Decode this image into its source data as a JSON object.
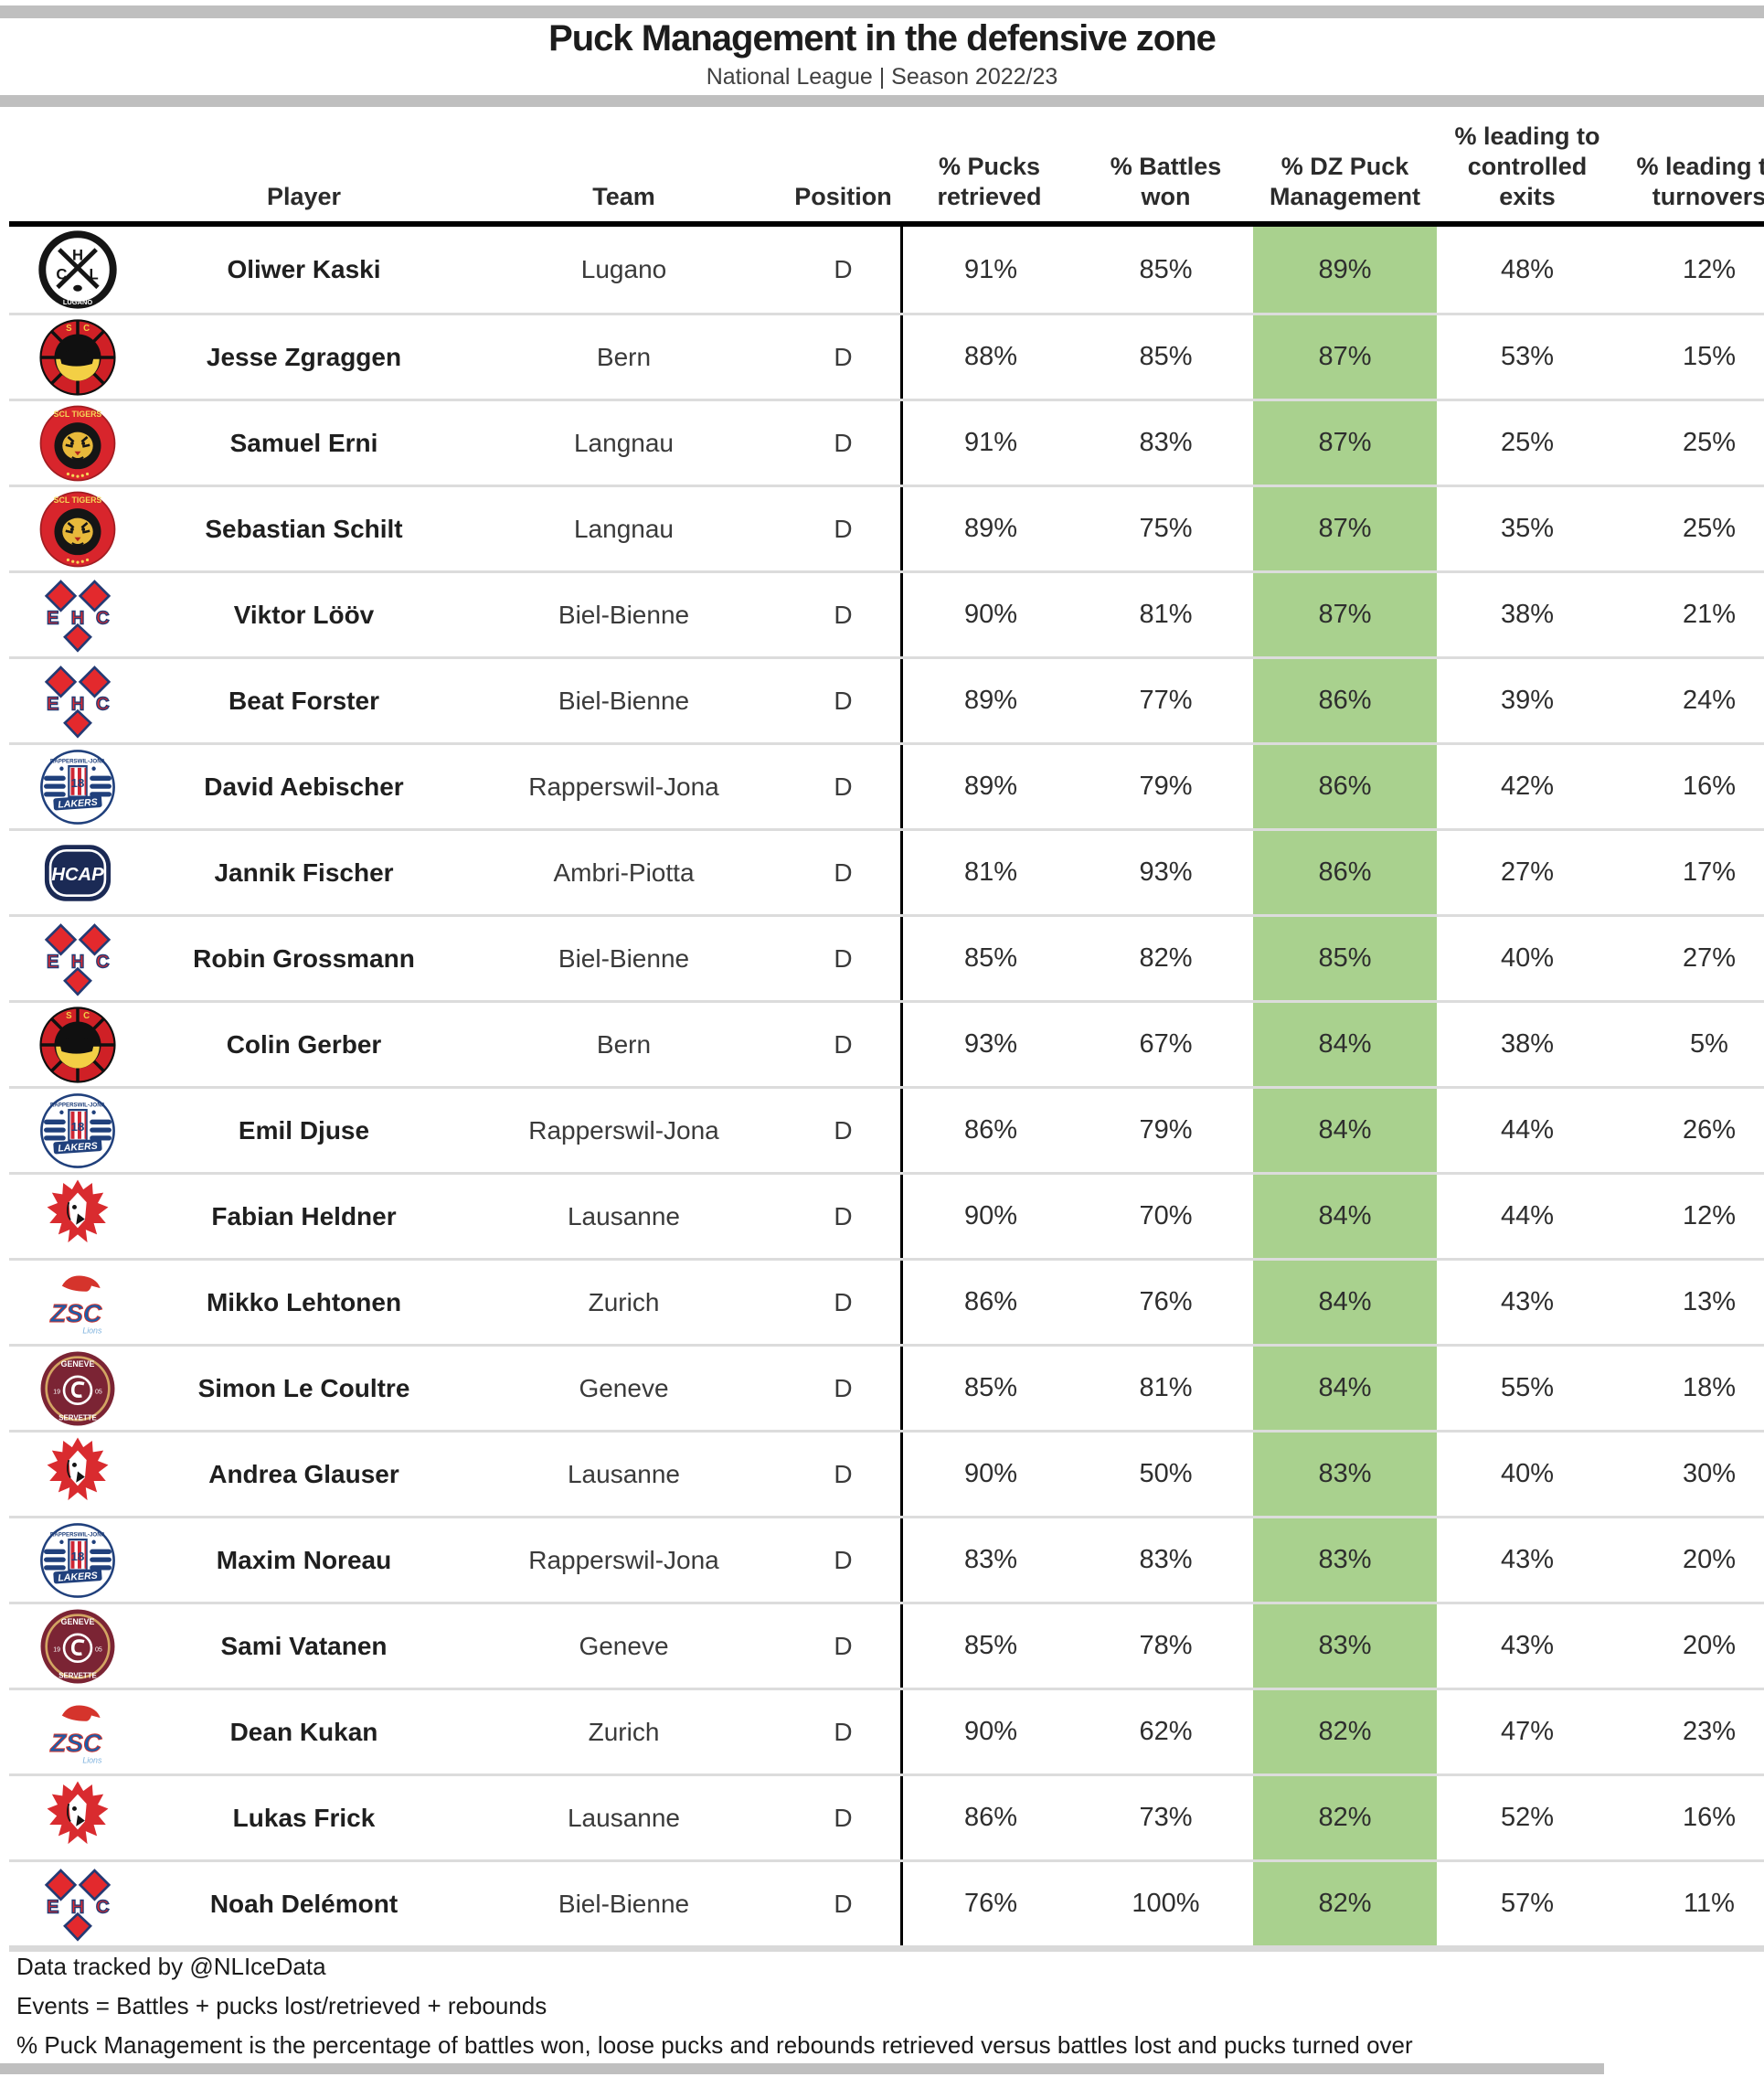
{
  "title_block": {
    "title": "Puck Management in the defensive zone",
    "subtitle": "National League | Season 2022/23"
  },
  "colors": {
    "highlight_green": "#a9d18e",
    "divider_gray": "#bfbfbf",
    "separator_gray": "#dcdcdc"
  },
  "footer": {
    "line1": "Data tracked by @NLIceData",
    "line2": "Events = Battles + pucks lost/retrieved + rebounds",
    "line3": "% Puck Management is the percentage of battles won, loose pucks and rebounds retrieved versus battles lost and pucks turned over"
  },
  "chart_data": {
    "type": "table",
    "title": "Puck Management in the defensive zone",
    "subtitle": "National League | Season 2022/23",
    "columns": {
      "player": "Player",
      "team": "Team",
      "position": "Position",
      "pucks": "% Pucks\nretrieved",
      "battles": "% Battles\nwon",
      "dz": "% DZ Puck\nManagement",
      "exits": "% leading to\ncontrolled\nexits",
      "turnovers": "% leading to\nturnovers"
    },
    "highlighted_column": "% DZ Puck Management",
    "rows": [
      {
        "player": "Oliwer Kaski",
        "team": "Lugano",
        "logo": "lugano",
        "position": "D",
        "pucks": "91%",
        "battles": "85%",
        "dz": "89%",
        "exits": "48%",
        "turnovers": "12%"
      },
      {
        "player": "Jesse Zgraggen",
        "team": "Bern",
        "logo": "bern",
        "position": "D",
        "pucks": "88%",
        "battles": "85%",
        "dz": "87%",
        "exits": "53%",
        "turnovers": "15%"
      },
      {
        "player": "Samuel Erni",
        "team": "Langnau",
        "logo": "langnau",
        "position": "D",
        "pucks": "91%",
        "battles": "83%",
        "dz": "87%",
        "exits": "25%",
        "turnovers": "25%"
      },
      {
        "player": "Sebastian Schilt",
        "team": "Langnau",
        "logo": "langnau",
        "position": "D",
        "pucks": "89%",
        "battles": "75%",
        "dz": "87%",
        "exits": "35%",
        "turnovers": "25%"
      },
      {
        "player": "Viktor Lööv",
        "team": "Biel-Bienne",
        "logo": "biel",
        "position": "D",
        "pucks": "90%",
        "battles": "81%",
        "dz": "87%",
        "exits": "38%",
        "turnovers": "21%"
      },
      {
        "player": "Beat Forster",
        "team": "Biel-Bienne",
        "logo": "biel",
        "position": "D",
        "pucks": "89%",
        "battles": "77%",
        "dz": "86%",
        "exits": "39%",
        "turnovers": "24%"
      },
      {
        "player": "David Aebischer",
        "team": "Rapperswil-Jona",
        "logo": "rappi",
        "position": "D",
        "pucks": "89%",
        "battles": "79%",
        "dz": "86%",
        "exits": "42%",
        "turnovers": "16%"
      },
      {
        "player": "Jannik Fischer",
        "team": "Ambri-Piotta",
        "logo": "ambri",
        "position": "D",
        "pucks": "81%",
        "battles": "93%",
        "dz": "86%",
        "exits": "27%",
        "turnovers": "17%"
      },
      {
        "player": "Robin Grossmann",
        "team": "Biel-Bienne",
        "logo": "biel",
        "position": "D",
        "pucks": "85%",
        "battles": "82%",
        "dz": "85%",
        "exits": "40%",
        "turnovers": "27%"
      },
      {
        "player": "Colin Gerber",
        "team": "Bern",
        "logo": "bern",
        "position": "D",
        "pucks": "93%",
        "battles": "67%",
        "dz": "84%",
        "exits": "38%",
        "turnovers": "5%"
      },
      {
        "player": "Emil Djuse",
        "team": "Rapperswil-Jona",
        "logo": "rappi",
        "position": "D",
        "pucks": "86%",
        "battles": "79%",
        "dz": "84%",
        "exits": "44%",
        "turnovers": "26%"
      },
      {
        "player": "Fabian Heldner",
        "team": "Lausanne",
        "logo": "lausanne",
        "position": "D",
        "pucks": "90%",
        "battles": "70%",
        "dz": "84%",
        "exits": "44%",
        "turnovers": "12%"
      },
      {
        "player": "Mikko Lehtonen",
        "team": "Zurich",
        "logo": "zurich",
        "position": "D",
        "pucks": "86%",
        "battles": "76%",
        "dz": "84%",
        "exits": "43%",
        "turnovers": "13%"
      },
      {
        "player": "Simon Le Coultre",
        "team": "Geneve",
        "logo": "geneve",
        "position": "D",
        "pucks": "85%",
        "battles": "81%",
        "dz": "84%",
        "exits": "55%",
        "turnovers": "18%"
      },
      {
        "player": "Andrea Glauser",
        "team": "Lausanne",
        "logo": "lausanne",
        "position": "D",
        "pucks": "90%",
        "battles": "50%",
        "dz": "83%",
        "exits": "40%",
        "turnovers": "30%"
      },
      {
        "player": "Maxim Noreau",
        "team": "Rapperswil-Jona",
        "logo": "rappi",
        "position": "D",
        "pucks": "83%",
        "battles": "83%",
        "dz": "83%",
        "exits": "43%",
        "turnovers": "20%"
      },
      {
        "player": "Sami Vatanen",
        "team": "Geneve",
        "logo": "geneve",
        "position": "D",
        "pucks": "85%",
        "battles": "78%",
        "dz": "83%",
        "exits": "43%",
        "turnovers": "20%"
      },
      {
        "player": "Dean Kukan",
        "team": "Zurich",
        "logo": "zurich",
        "position": "D",
        "pucks": "90%",
        "battles": "62%",
        "dz": "82%",
        "exits": "47%",
        "turnovers": "23%"
      },
      {
        "player": "Lukas Frick",
        "team": "Lausanne",
        "logo": "lausanne",
        "position": "D",
        "pucks": "86%",
        "battles": "73%",
        "dz": "82%",
        "exits": "52%",
        "turnovers": "16%"
      },
      {
        "player": "Noah Delémont",
        "team": "Biel-Bienne",
        "logo": "biel",
        "position": "D",
        "pucks": "76%",
        "battles": "100%",
        "dz": "82%",
        "exits": "57%",
        "turnovers": "11%"
      }
    ]
  }
}
